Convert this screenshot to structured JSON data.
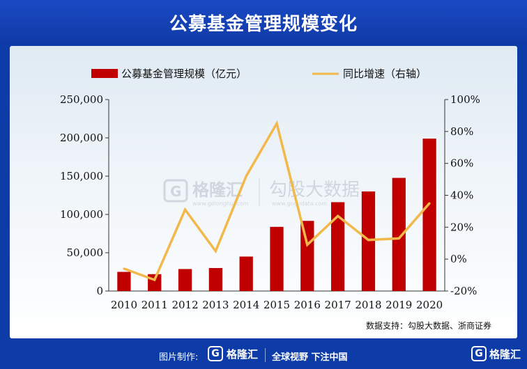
{
  "header": {
    "title": "公募基金管理规模变化"
  },
  "chart_data": {
    "type": "bar",
    "categories": [
      "2010",
      "2011",
      "2012",
      "2013",
      "2014",
      "2015",
      "2016",
      "2017",
      "2018",
      "2019",
      "2020"
    ],
    "series": [
      {
        "name": "公募基金管理规模（亿元）",
        "type": "bar",
        "axis": "left",
        "values": [
          25000,
          22000,
          28700,
          30000,
          45000,
          83800,
          91600,
          116000,
          130000,
          147700,
          199000
        ]
      },
      {
        "name": "同比增速（右轴）",
        "type": "line",
        "axis": "right",
        "values": [
          -6,
          -13,
          31,
          5,
          52,
          85,
          9,
          27,
          12,
          13,
          35
        ]
      }
    ],
    "y_left": {
      "ylim": [
        0,
        250000
      ],
      "ticks": [
        "250,000",
        "200,000",
        "150,000",
        "100,000",
        "50,000",
        "0"
      ]
    },
    "y_right": {
      "ylim": [
        -20,
        100
      ],
      "ticks": [
        "100%",
        "80%",
        "60%",
        "40%",
        "20%",
        "0%",
        "-20%"
      ]
    },
    "legend_position": "top",
    "grid": false,
    "source_note": "数据支持：勾股大数据、浙商证券",
    "colors": {
      "bar": "#c00000",
      "line": "#f2b84b"
    }
  },
  "watermark": {
    "left_name": "格隆汇",
    "left_url": "www.gelonghui.com",
    "right_name": "勾股大数据",
    "right_url": "www.gogudata.com",
    "left_badge": "G"
  },
  "footer": {
    "credit": "图片制作:",
    "logo_badge": "G",
    "logo_name": "格隆汇",
    "slogan": "全球视野 下注中国",
    "corner_badge": "G",
    "corner_name": "格隆汇"
  }
}
